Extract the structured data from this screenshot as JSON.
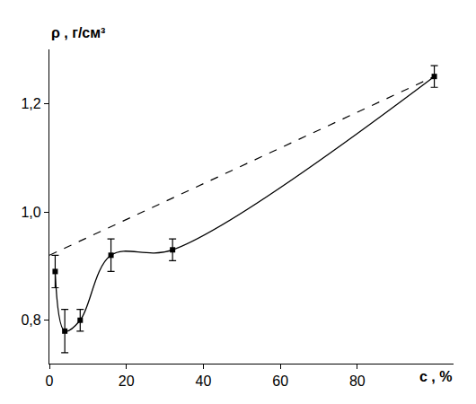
{
  "chart_data": {
    "type": "scatter",
    "x_label": "c , %",
    "y_label": "ρ , г/см³",
    "xlim": [
      0,
      105
    ],
    "xticks": [
      0,
      20,
      40,
      60,
      80
    ],
    "ylim": [
      0.72,
      1.3
    ],
    "yticks": [
      {
        "value": 0.8,
        "label": "0,8"
      },
      {
        "value": 1.0,
        "label": "1,0"
      },
      {
        "value": 1.2,
        "label": "1,2"
      }
    ],
    "grid": false,
    "series": [
      {
        "type": "line",
        "line_style": "solid",
        "marker": "square",
        "color": "#000000",
        "x": [
          1.5,
          4,
          8,
          16,
          32,
          100
        ],
        "values": [
          0.89,
          0.78,
          0.8,
          0.92,
          0.93,
          1.25
        ],
        "errors": [
          0.03,
          0.04,
          0.02,
          0.03,
          0.02,
          0.02
        ]
      },
      {
        "type": "line",
        "line_style": "dash",
        "color": "#000000",
        "x": [
          0,
          100
        ],
        "values": [
          0.92,
          1.25
        ]
      }
    ]
  }
}
